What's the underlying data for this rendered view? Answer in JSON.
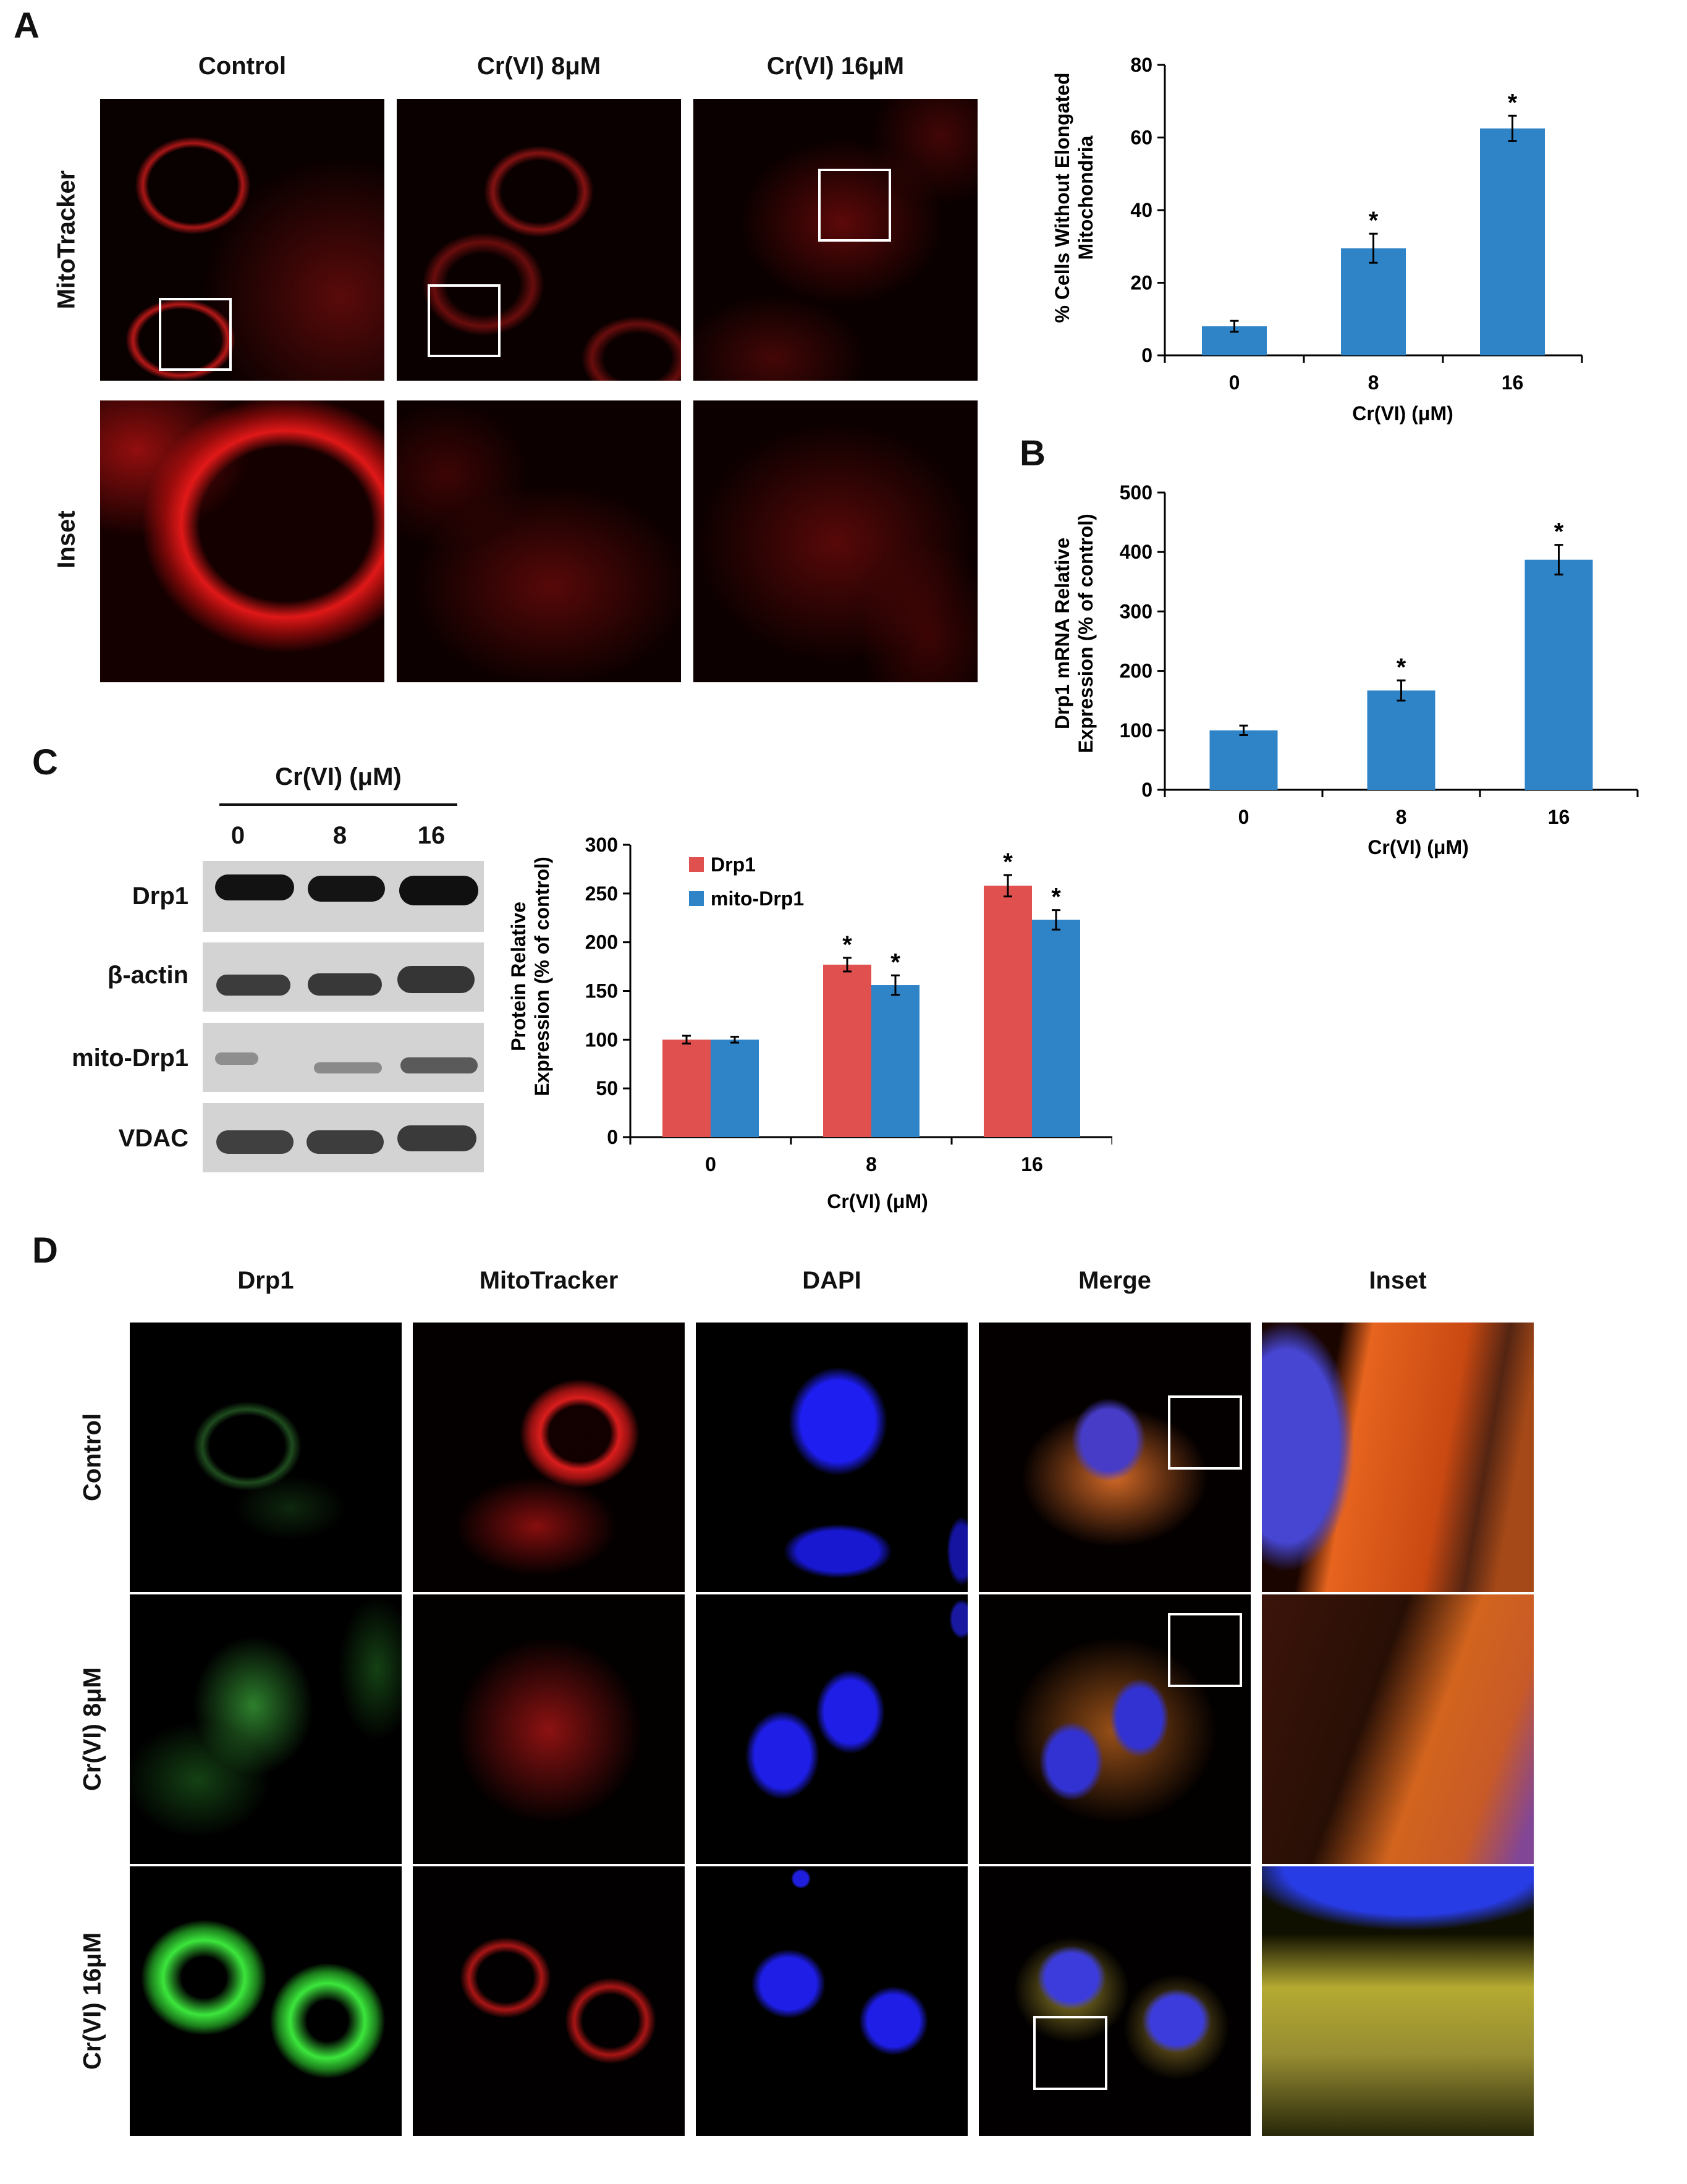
{
  "panel_letters": {
    "a": "A",
    "b": "B",
    "c": "C",
    "d": "D"
  },
  "panel_a": {
    "col_headers": [
      "Control",
      "Cr(VI) 8μM",
      "Cr(VI) 16μM"
    ],
    "row_labels": [
      "MitoTracker",
      "Inset"
    ]
  },
  "panel_c": {
    "blot_header": "Cr(VI) (μM)",
    "lanes": [
      "0",
      "8",
      "16"
    ],
    "rows": [
      "Drp1",
      "β-actin",
      "mito-Drp1",
      "VDAC"
    ]
  },
  "panel_d": {
    "col_headers": [
      "Drp1",
      "MitoTracker",
      "DAPI",
      "Merge",
      "Inset"
    ],
    "row_labels": [
      "Control",
      "Cr(VI) 8μM",
      "Cr(VI) 16μM"
    ]
  },
  "colors": {
    "bar_blue": "#2f84c8",
    "bar_red": "#e0504e",
    "red_stain": "#e01818",
    "green_stain": "#30d830",
    "blue_stain": "#2020e0"
  },
  "chart_data": [
    {
      "id": "chart_a",
      "type": "bar",
      "categories": [
        "0",
        "8",
        "16"
      ],
      "values": [
        8,
        29.5,
        62.5
      ],
      "errors": [
        1.5,
        4,
        3.5
      ],
      "significance": [
        "",
        "*",
        "*"
      ],
      "xlabel": "Cr(VI) (μM)",
      "ylabel_lines": [
        "% Cells Without Elongated",
        "Mitochondria"
      ],
      "ylim": [
        0,
        80
      ],
      "yticks": [
        "0",
        "20",
        "40",
        "60",
        "80"
      ],
      "color": "#2f84c8"
    },
    {
      "id": "chart_b",
      "type": "bar",
      "categories": [
        "0",
        "8",
        "16"
      ],
      "values": [
        100,
        167,
        387
      ],
      "errors": [
        8,
        17,
        25
      ],
      "significance": [
        "",
        "*",
        "*"
      ],
      "xlabel": "Cr(VI) (μM)",
      "ylabel_lines": [
        "Drp1 mRNA Relative",
        "Expression (% of  control)"
      ],
      "ylim": [
        0,
        500
      ],
      "yticks": [
        "0",
        "100",
        "200",
        "300",
        "400",
        "500"
      ],
      "color": "#2f84c8"
    },
    {
      "id": "chart_c",
      "type": "bar",
      "categories": [
        "0",
        "8",
        "16"
      ],
      "series": [
        {
          "name": "Drp1",
          "values": [
            100,
            177,
            258
          ],
          "errors": [
            4,
            7,
            11
          ],
          "significance": [
            "",
            "*",
            "*"
          ],
          "color": "#e0504e"
        },
        {
          "name": "mito-Drp1",
          "values": [
            100,
            156,
            223
          ],
          "errors": [
            3,
            10,
            10
          ],
          "significance": [
            "",
            "*",
            "*"
          ],
          "color": "#2f84c8"
        }
      ],
      "xlabel": "Cr(VI) (μM)",
      "ylabel_lines": [
        "Protein Relative",
        "Expression (% of  control)"
      ],
      "ylim": [
        0,
        300
      ],
      "yticks": [
        "0",
        "50",
        "100",
        "150",
        "200",
        "250",
        "300"
      ],
      "legend": "top-left"
    }
  ]
}
